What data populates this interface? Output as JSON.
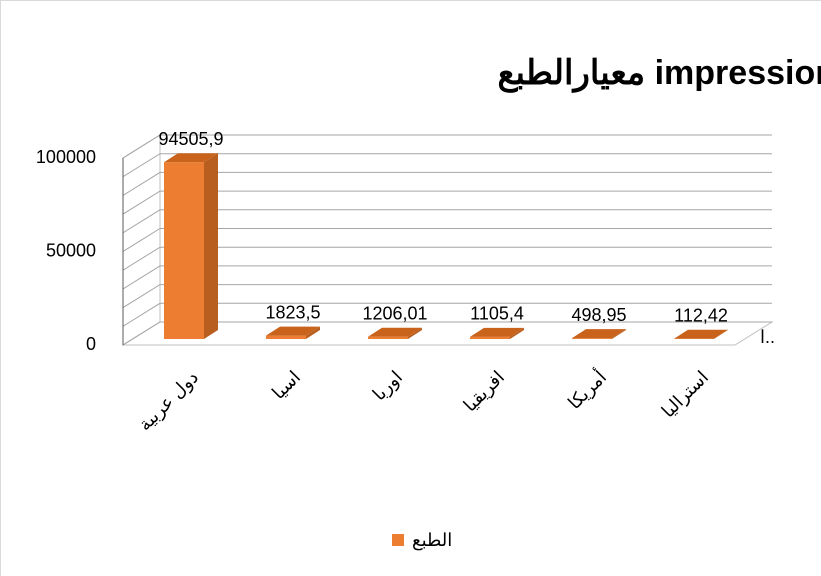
{
  "chart_data": {
    "type": "bar3d",
    "title": "معيارالطبع impression",
    "categories": [
      "دول عربية",
      "اسيا",
      "اوربا",
      "افريقيا",
      "أمريكا",
      "استراليا"
    ],
    "series": [
      {
        "name": "الطبع",
        "color": "#ed7d31",
        "values": [
          94505.9,
          1823.5,
          1206.01,
          1105.4,
          498.95,
          112.42
        ],
        "value_labels": [
          "94505,9",
          "1823,5",
          "1206,01",
          "1105,4",
          "498,95",
          "112,42"
        ]
      }
    ],
    "ylim": [
      0,
      100000
    ],
    "yticks": [
      0,
      50000,
      100000
    ],
    "grid_lines": [
      0,
      10000,
      20000,
      30000,
      40000,
      50000,
      60000,
      70000,
      80000,
      90000,
      100000
    ],
    "annotation": "ا..",
    "legend": "bottom"
  }
}
